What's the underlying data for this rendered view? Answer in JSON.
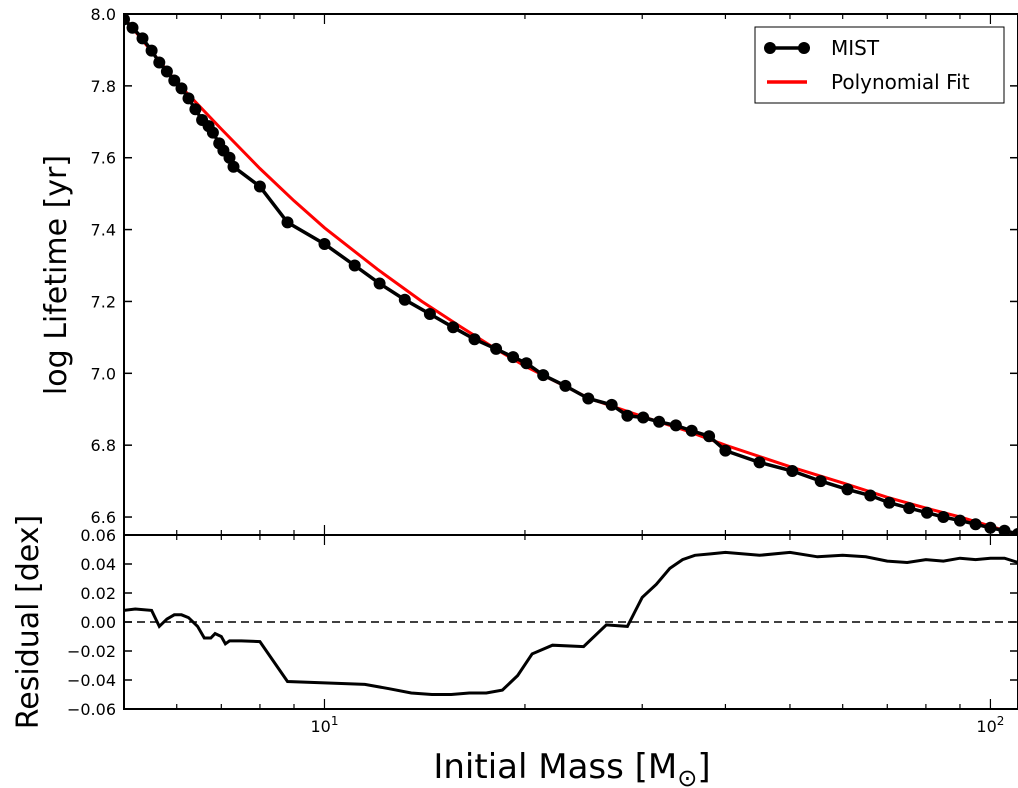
{
  "chart_data": [
    {
      "type": "line",
      "panel": "top",
      "xscale": "log",
      "xlim": [
        5,
        110
      ],
      "ylim": [
        6.55,
        8.0
      ],
      "xlabel": "",
      "ylabel": "log Lifetime [yr]",
      "yticks": [
        "6.6",
        "6.8",
        "7.0",
        "7.2",
        "7.4",
        "7.6",
        "7.8",
        "8.0"
      ],
      "legend_position": "top-right",
      "series": [
        {
          "name": "MIST",
          "color": "#000000",
          "marker": "circle",
          "x": [
            5.0,
            5.15,
            5.33,
            5.5,
            5.65,
            5.8,
            5.95,
            6.1,
            6.25,
            6.4,
            6.55,
            6.7,
            6.8,
            6.95,
            7.05,
            7.2,
            7.3,
            8.0,
            8.8,
            10.0,
            11.1,
            12.1,
            13.2,
            14.4,
            15.6,
            16.8,
            18.1,
            19.2,
            20.1,
            21.3,
            23.0,
            24.9,
            27.0,
            28.5,
            30.1,
            31.8,
            33.7,
            35.6,
            37.8,
            40.0,
            45.0,
            50.4,
            55.6,
            61.0,
            66.0,
            70.5,
            75.5,
            80.3,
            85.0,
            90.0,
            95.0,
            100.0,
            105.0,
            110.0
          ],
          "y": [
            7.985,
            7.962,
            7.932,
            7.898,
            7.865,
            7.84,
            7.815,
            7.793,
            7.765,
            7.735,
            7.705,
            7.688,
            7.67,
            7.64,
            7.62,
            7.6,
            7.575,
            7.52,
            7.42,
            7.36,
            7.3,
            7.25,
            7.205,
            7.165,
            7.128,
            7.095,
            7.068,
            7.045,
            7.028,
            6.995,
            6.965,
            6.93,
            6.912,
            6.882,
            6.877,
            6.865,
            6.855,
            6.84,
            6.825,
            6.785,
            6.752,
            6.728,
            6.7,
            6.677,
            6.66,
            6.64,
            6.625,
            6.612,
            6.6,
            6.59,
            6.58,
            6.57,
            6.562,
            6.553
          ]
        },
        {
          "name": "Polynomial Fit",
          "color": "#ff0000",
          "x": [
            5.0,
            6.0,
            7.0,
            8.0,
            9.0,
            10.0,
            12.0,
            14.0,
            16.0,
            18.0,
            20.0,
            25.0,
            30.0,
            35.0,
            40.0,
            50.0,
            60.0,
            70.0,
            80.0,
            90.0,
            100.0,
            110.0
          ],
          "y": [
            7.99,
            7.81,
            7.68,
            7.57,
            7.48,
            7.405,
            7.29,
            7.2,
            7.13,
            7.07,
            7.02,
            6.93,
            6.88,
            6.84,
            6.8,
            6.74,
            6.695,
            6.655,
            6.625,
            6.6,
            6.575,
            6.55
          ]
        }
      ]
    },
    {
      "type": "line",
      "panel": "bottom",
      "xscale": "log",
      "xlim": [
        5,
        110
      ],
      "ylim": [
        -0.06,
        0.06
      ],
      "xlabel": "Initial Mass [M",
      "xlabel_sub": "⊙",
      "xlabel_end": "]",
      "ylabel": "Residual [dex]",
      "yticks": [
        "−0.06",
        "−0.04",
        "−0.02",
        "0.00",
        "0.02",
        "0.04",
        "0.06"
      ],
      "xticks": [
        {
          "value": 10,
          "base": "10",
          "exp": "1"
        },
        {
          "value": 100,
          "base": "10",
          "exp": "2"
        }
      ],
      "reference_line": {
        "y": 0.0,
        "style": "dashed"
      },
      "series": [
        {
          "color": "#000000",
          "x": [
            5.0,
            5.2,
            5.5,
            5.65,
            5.8,
            5.95,
            6.1,
            6.25,
            6.45,
            6.6,
            6.75,
            6.85,
            7.0,
            7.1,
            7.2,
            7.3,
            7.5,
            8.0,
            8.8,
            10.0,
            11.5,
            12.5,
            13.5,
            14.5,
            15.5,
            16.5,
            17.5,
            18.5,
            19.5,
            20.5,
            22.0,
            24.5,
            26.5,
            28.5,
            30.0,
            31.5,
            33.0,
            34.5,
            36.0,
            38.0,
            40.0,
            45.0,
            50.0,
            55.0,
            60.0,
            65.0,
            70.0,
            75.0,
            80.0,
            85.0,
            90.0,
            95.0,
            100.0,
            105.0,
            110.0
          ],
          "y": [
            0.008,
            0.009,
            0.008,
            -0.003,
            0.002,
            0.005,
            0.005,
            0.003,
            -0.003,
            -0.011,
            -0.011,
            -0.008,
            -0.01,
            -0.015,
            -0.013,
            -0.013,
            -0.013,
            -0.0135,
            -0.041,
            -0.042,
            -0.043,
            -0.046,
            -0.049,
            -0.05,
            -0.05,
            -0.049,
            -0.049,
            -0.047,
            -0.037,
            -0.022,
            -0.016,
            -0.017,
            -0.002,
            -0.003,
            0.017,
            0.026,
            0.037,
            0.043,
            0.046,
            0.047,
            0.048,
            0.046,
            0.048,
            0.045,
            0.046,
            0.045,
            0.042,
            0.041,
            0.043,
            0.042,
            0.044,
            0.043,
            0.044,
            0.044,
            0.041
          ]
        }
      ]
    }
  ]
}
